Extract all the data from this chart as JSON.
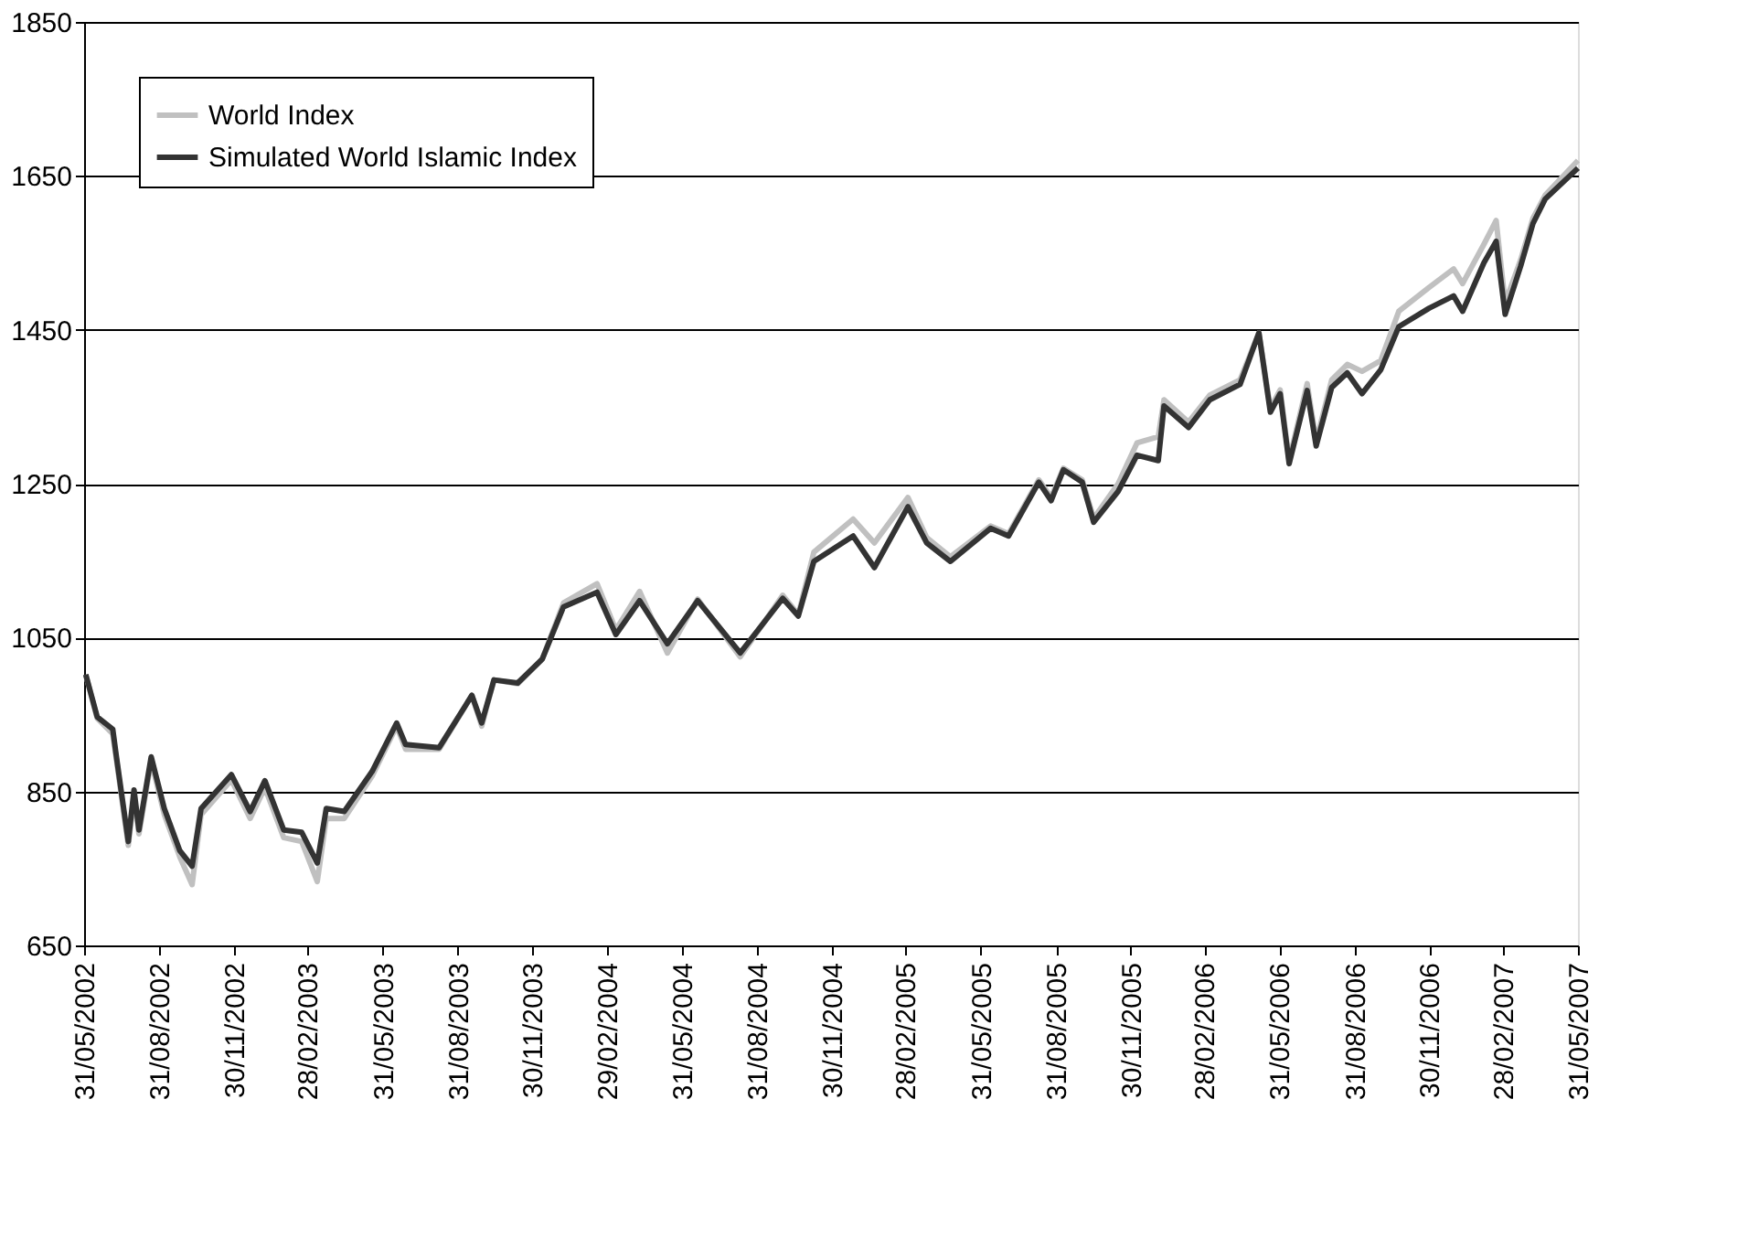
{
  "chart_data": {
    "type": "line",
    "x": [
      "2002-06-02",
      "2002-06-16",
      "2002-07-05",
      "2002-07-09",
      "2002-07-24",
      "2002-07-31",
      "2002-08-06",
      "2002-08-21",
      "2002-09-06",
      "2002-09-25",
      "2002-10-10",
      "2002-10-21",
      "2002-11-27",
      "2002-12-20",
      "2003-01-07",
      "2003-01-30",
      "2003-02-21",
      "2003-03-12",
      "2003-03-23",
      "2003-04-14",
      "2003-05-18",
      "2003-06-17",
      "2003-06-28",
      "2003-08-08",
      "2003-09-17",
      "2003-09-29",
      "2003-10-14",
      "2003-11-12",
      "2003-12-12",
      "2004-01-07",
      "2004-02-17",
      "2004-03-11",
      "2004-04-09",
      "2004-05-13",
      "2004-06-19",
      "2004-08-10",
      "2004-10-01",
      "2004-10-20",
      "2004-11-08",
      "2004-12-26",
      "2005-01-21",
      "2005-03-03",
      "2005-03-26",
      "2005-04-24",
      "2005-06-12",
      "2005-07-04",
      "2005-08-10",
      "2005-08-25",
      "2005-09-09",
      "2005-10-02",
      "2005-10-16",
      "2005-11-15",
      "2005-12-08",
      "2006-01-03",
      "2006-01-10",
      "2006-02-09",
      "2006-03-07",
      "2006-04-13",
      "2006-05-06",
      "2006-05-20",
      "2006-06-01",
      "2006-06-12",
      "2006-07-04",
      "2006-07-15",
      "2006-08-03",
      "2006-08-22",
      "2006-09-09",
      "2006-10-02",
      "2006-10-24",
      "2006-11-30",
      "2006-12-30",
      "2007-01-10",
      "2007-02-05",
      "2007-02-20",
      "2007-03-03",
      "2007-03-22",
      "2007-04-06",
      "2007-04-21",
      "2007-05-31"
    ],
    "series": [
      {
        "name": "World Index",
        "color": "#c0c0c0",
        "values": [
          1002,
          945,
          925,
          895,
          780,
          845,
          795,
          890,
          820,
          765,
          729,
          820,
          865,
          815,
          855,
          790,
          785,
          733,
          815,
          815,
          870,
          935,
          905,
          905,
          975,
          935,
          995,
          990,
          1022,
          1095,
          1120,
          1060,
          1110,
          1030,
          1100,
          1025,
          1105,
          1080,
          1161,
          1204,
          1173,
          1232,
          1180,
          1155,
          1195,
          1185,
          1255,
          1232,
          1270,
          1255,
          1205,
          1250,
          1303,
          1311,
          1359,
          1330,
          1365,
          1385,
          1446,
          1348,
          1372,
          1280,
          1380,
          1305,
          1385,
          1405,
          1396,
          1410,
          1474,
          1505,
          1529,
          1510,
          1561,
          1592,
          1485,
          1541,
          1595,
          1625,
          1670
        ]
      },
      {
        "name": "Simulated World Islamic Index",
        "color": "#333333",
        "values": [
          1002,
          947,
          931,
          899,
          785,
          852,
          800,
          895,
          828,
          773,
          753,
          828,
          872,
          824,
          864,
          800,
          797,
          757,
          828,
          824,
          876,
          939,
          911,
          907,
          975,
          939,
          995,
          991,
          1022,
          1090,
          1109,
          1054,
          1098,
          1042,
          1098,
          1030,
          1101,
          1078,
          1149,
          1182,
          1141,
          1220,
          1173,
          1149,
          1192,
          1182,
          1252,
          1228,
          1268,
          1252,
          1200,
          1240,
          1287,
          1280,
          1351,
          1323,
          1359,
          1379,
          1446,
          1343,
          1367,
          1276,
          1371,
          1299,
          1375,
          1394,
          1367,
          1398,
          1454,
          1478,
          1494,
          1474,
          1537,
          1565,
          1470,
          1533,
          1588,
          1620,
          1660
        ]
      }
    ],
    "xlim": [
      "2002-05-31",
      "2007-05-31"
    ],
    "xticks": [
      {
        "value": "2002-05-31",
        "label": "31/05/2002"
      },
      {
        "value": "2002-08-31",
        "label": "31/08/2002"
      },
      {
        "value": "2002-11-30",
        "label": "30/11/2002"
      },
      {
        "value": "2003-02-28",
        "label": "28/02/2003"
      },
      {
        "value": "2003-05-31",
        "label": "31/05/2003"
      },
      {
        "value": "2003-08-31",
        "label": "31/08/2003"
      },
      {
        "value": "2003-11-30",
        "label": "30/11/2003"
      },
      {
        "value": "2004-02-29",
        "label": "29/02/2004"
      },
      {
        "value": "2004-05-31",
        "label": "31/05/2004"
      },
      {
        "value": "2004-08-31",
        "label": "31/08/2004"
      },
      {
        "value": "2004-11-30",
        "label": "30/11/2004"
      },
      {
        "value": "2005-02-28",
        "label": "28/02/2005"
      },
      {
        "value": "2005-05-31",
        "label": "31/05/2005"
      },
      {
        "value": "2005-08-31",
        "label": "31/08/2005"
      },
      {
        "value": "2005-11-30",
        "label": "30/11/2005"
      },
      {
        "value": "2006-02-28",
        "label": "28/02/2006"
      },
      {
        "value": "2006-05-31",
        "label": "31/05/2006"
      },
      {
        "value": "2006-08-31",
        "label": "31/08/2006"
      },
      {
        "value": "2006-11-30",
        "label": "30/11/2006"
      },
      {
        "value": "2007-02-28",
        "label": "28/02/2007"
      },
      {
        "value": "2007-05-31",
        "label": "31/05/2007"
      }
    ],
    "ylim": [
      650,
      1850
    ],
    "yticks": [
      650,
      850,
      1050,
      1250,
      1450,
      1650,
      1850
    ],
    "grid": "y",
    "legend": "top left",
    "marker": "none",
    "line_style": "solid"
  }
}
